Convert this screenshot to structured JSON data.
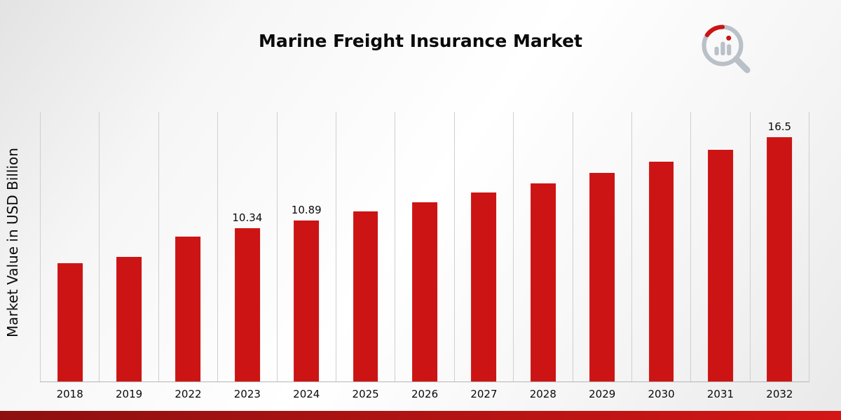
{
  "page": {
    "title": "Marine Freight Insurance Market"
  },
  "chart_data": {
    "type": "bar",
    "title": "Marine Freight Insurance Market",
    "xlabel": "",
    "ylabel": "Market Value in USD Billion",
    "categories": [
      "2018",
      "2019",
      "2022",
      "2023",
      "2024",
      "2025",
      "2026",
      "2027",
      "2028",
      "2029",
      "2030",
      "2031",
      "2032"
    ],
    "values": [
      8.0,
      8.4,
      9.8,
      10.34,
      10.89,
      11.5,
      12.1,
      12.75,
      13.4,
      14.1,
      14.85,
      15.65,
      16.5
    ],
    "data_labels": [
      null,
      null,
      null,
      "10.34",
      "10.89",
      null,
      null,
      null,
      null,
      null,
      null,
      null,
      "16.5"
    ],
    "ylim": [
      0,
      18.2
    ],
    "bar_color": "#cc1414",
    "grid": "vertical-only",
    "legend": "none"
  },
  "branding": {
    "logo_icon": "magnifier-bar-chart-logo",
    "logo_gray": "#b9c0c7",
    "logo_accent": "#cc1414"
  },
  "footer": {
    "stripe_gradient_start": "#8d1010",
    "stripe_gradient_end": "#d41616"
  }
}
